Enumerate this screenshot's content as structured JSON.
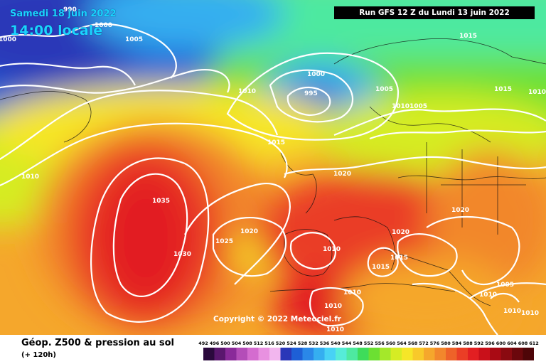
{
  "header": {
    "date": "Samedi 18 juin 2022",
    "local_time": "14:00 locale",
    "run_info": "Run GFS 12 Z du Lundi 13 juin 2022"
  },
  "map": {
    "copyright": "Copyright © 2022 Meteociel.fr",
    "isobar_labels": [
      "990",
      "1000",
      "1000",
      "1005",
      "1010",
      "1010",
      "1015",
      "1035",
      "1030",
      "1025",
      "1020",
      "1000",
      "995",
      "1005",
      "1010",
      "1005",
      "1015",
      "1015",
      "1010",
      "1010",
      "1020",
      "1020",
      "1020",
      "1010",
      "1015",
      "1015",
      "1010",
      "1010",
      "1010",
      "1005",
      "1010",
      "1010"
    ]
  },
  "footer": {
    "title": "Géop. Z500 & pression au sol",
    "lead": "(+ 120h)"
  },
  "scale": {
    "ticks": [
      "492",
      "496",
      "500",
      "504",
      "508",
      "512",
      "516",
      "520",
      "524",
      "528",
      "532",
      "536",
      "540",
      "544",
      "548",
      "552",
      "556",
      "560",
      "564",
      "568",
      "572",
      "576",
      "580",
      "584",
      "588",
      "592",
      "596",
      "600",
      "604",
      "608",
      "612"
    ],
    "colors": [
      "#2b0a3d",
      "#5a176e",
      "#8a2a99",
      "#b44db8",
      "#d46ccf",
      "#e891e0",
      "#f2b6ee",
      "#2a37b8",
      "#1e5fd6",
      "#2a87e8",
      "#35aef0",
      "#48d2f5",
      "#56ecd8",
      "#4ee9a0",
      "#3edc5a",
      "#6ce032",
      "#a4e82a",
      "#d6ec24",
      "#f6e628",
      "#f8c92a",
      "#f5a72c",
      "#f2872c",
      "#ee6229",
      "#ea3e26",
      "#e21f22",
      "#c9101a",
      "#a90a14",
      "#8a0a10",
      "#6b070c",
      "#4e0508"
    ]
  }
}
